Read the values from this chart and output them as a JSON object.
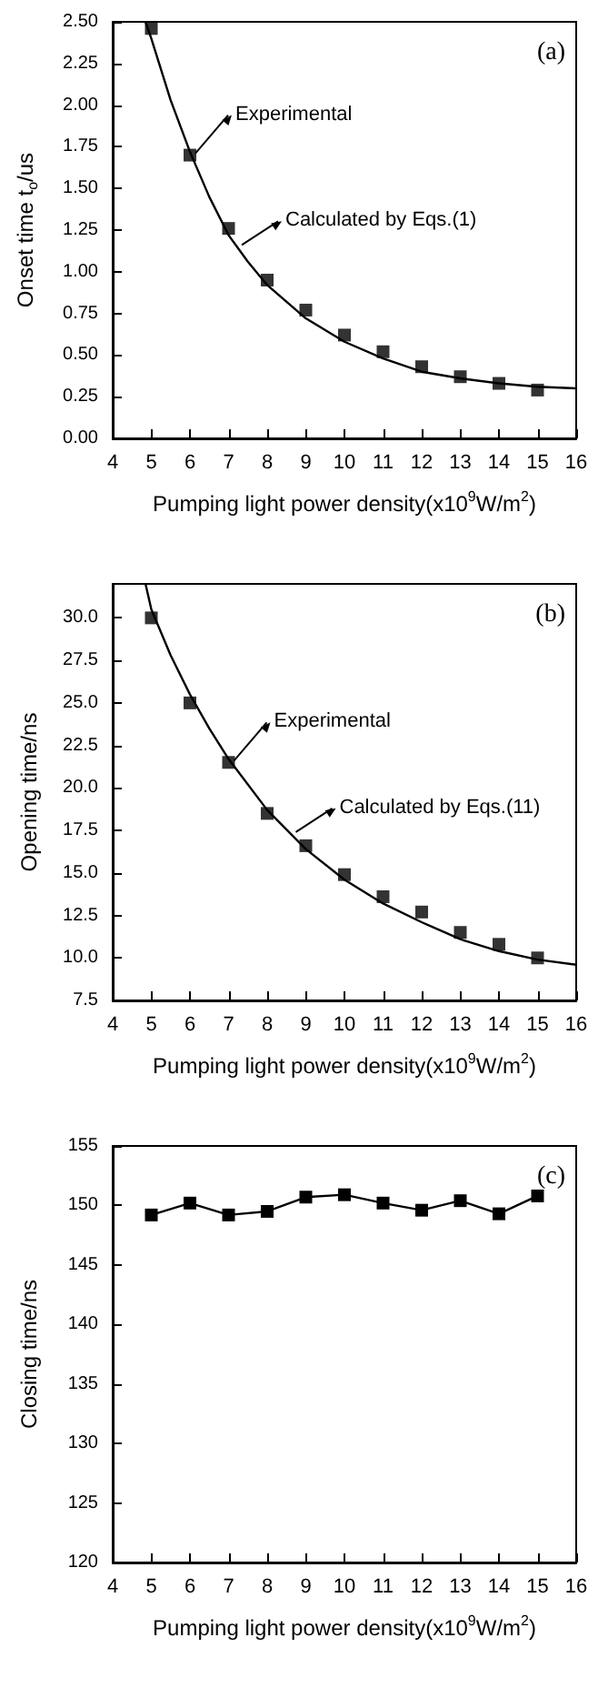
{
  "chart_data": [
    {
      "type": "scatter",
      "xlabel": "Pumping light power density(x10$^{9}$W/m$^{2}$)",
      "ylabel": "Onset time t$_{o}$/us",
      "annotations": [
        "(a)",
        {
          "text": "Experimental",
          "x": 6,
          "y": 1.7
        },
        {
          "text": "Calculated by Eqs.(1)",
          "x": 7.2,
          "y": 1.15
        }
      ],
      "xlim": [
        4,
        16
      ],
      "xticks": [
        4,
        5,
        6,
        7,
        8,
        9,
        10,
        11,
        12,
        13,
        14,
        15,
        16
      ],
      "ylim": [
        0,
        2.5
      ],
      "yticks": [
        {
          "value": 0,
          "label": "0.00"
        },
        {
          "value": 0.25,
          "label": "0.25"
        },
        {
          "value": 0.5,
          "label": "0.50"
        },
        {
          "value": 0.75,
          "label": "0.75"
        },
        {
          "value": 1,
          "label": "1.00"
        },
        {
          "value": 1.25,
          "label": "1.25"
        },
        {
          "value": 1.5,
          "label": "1.50"
        },
        {
          "value": 1.75,
          "label": "1.75"
        },
        {
          "value": 2,
          "label": "2.00"
        },
        {
          "value": 2.25,
          "label": "2.25"
        },
        {
          "value": 2.5,
          "label": "2.50"
        }
      ],
      "grid": false,
      "series": [
        {
          "marker": "square",
          "color": "#000000",
          "x": [
            5,
            6,
            7,
            8,
            9,
            10,
            11,
            12,
            13,
            14,
            15
          ],
          "values": [
            2.46,
            1.7,
            1.26,
            0.95,
            0.77,
            0.62,
            0.52,
            0.43,
            0.37,
            0.33,
            0.29
          ]
        },
        {
          "type": "line",
          "color": "#000000",
          "x": [
            4.85,
            5,
            5.5,
            6,
            6.5,
            7,
            7.5,
            8,
            9,
            10,
            11,
            12,
            13,
            14,
            15,
            16
          ],
          "values": [
            2.5,
            2.4,
            2.03,
            1.72,
            1.45,
            1.22,
            1.06,
            0.92,
            0.72,
            0.58,
            0.48,
            0.4,
            0.36,
            0.33,
            0.31,
            0.3
          ]
        }
      ]
    },
    {
      "type": "scatter",
      "xlabel": "Pumping light power density(x10$^{9}$W/m$^{2}$)",
      "ylabel": "Opening time/ns",
      "annotations": [
        "(b)",
        {
          "text": "Experimental",
          "x": 7,
          "y": 21.5
        },
        {
          "text": "Calculated by Eqs.(11)",
          "x": 8.6,
          "y": 17.3
        }
      ],
      "xlim": [
        4,
        16
      ],
      "xticks": [
        4,
        5,
        6,
        7,
        8,
        9,
        10,
        11,
        12,
        13,
        14,
        15,
        16
      ],
      "ylim": [
        7.5,
        32
      ],
      "yticks": [
        {
          "value": 7.5,
          "label": "7.5"
        },
        {
          "value": 10,
          "label": "10.0"
        },
        {
          "value": 12.5,
          "label": "12.5"
        },
        {
          "value": 15,
          "label": "15.0"
        },
        {
          "value": 17.5,
          "label": "17.5"
        },
        {
          "value": 20,
          "label": "20.0"
        },
        {
          "value": 22.5,
          "label": "22.5"
        },
        {
          "value": 25,
          "label": "25.0"
        },
        {
          "value": 27.5,
          "label": "27.5"
        },
        {
          "value": 30,
          "label": "30.0"
        }
      ],
      "grid": false,
      "series": [
        {
          "marker": "square",
          "color": "#000000",
          "x": [
            5,
            6,
            7,
            8,
            9,
            10,
            11,
            12,
            13,
            14,
            15
          ],
          "values": [
            30.0,
            25.0,
            21.5,
            18.5,
            16.6,
            14.9,
            13.6,
            12.7,
            11.5,
            10.8,
            10.0
          ]
        },
        {
          "type": "line",
          "color": "#000000",
          "x": [
            4.85,
            5,
            5.5,
            6,
            6.5,
            7,
            8,
            9,
            10,
            11,
            12,
            13,
            14,
            15,
            16
          ],
          "values": [
            32,
            30.5,
            27.8,
            25.5,
            23.5,
            21.7,
            18.7,
            16.4,
            14.6,
            13.2,
            12.1,
            11.1,
            10.4,
            9.9,
            9.6
          ]
        }
      ]
    },
    {
      "type": "line",
      "marker": "square",
      "xlabel": "Pumping light power density(x10$^{9}$W/m$^{2}$)",
      "ylabel": "Closing time/ns",
      "annotations": [
        "(c)"
      ],
      "xlim": [
        4,
        16
      ],
      "xticks": [
        4,
        5,
        6,
        7,
        8,
        9,
        10,
        11,
        12,
        13,
        14,
        15,
        16
      ],
      "ylim": [
        120,
        155
      ],
      "yticks": [
        120,
        125,
        130,
        135,
        140,
        145,
        150,
        155
      ],
      "grid": false,
      "series": [
        {
          "color": "#000000",
          "x": [
            5,
            6,
            7,
            8,
            9,
            10,
            11,
            12,
            13,
            14,
            15
          ],
          "values": [
            149.2,
            150.2,
            149.2,
            149.5,
            150.7,
            150.9,
            150.2,
            149.6,
            150.4,
            149.3,
            150.8
          ]
        }
      ]
    }
  ]
}
